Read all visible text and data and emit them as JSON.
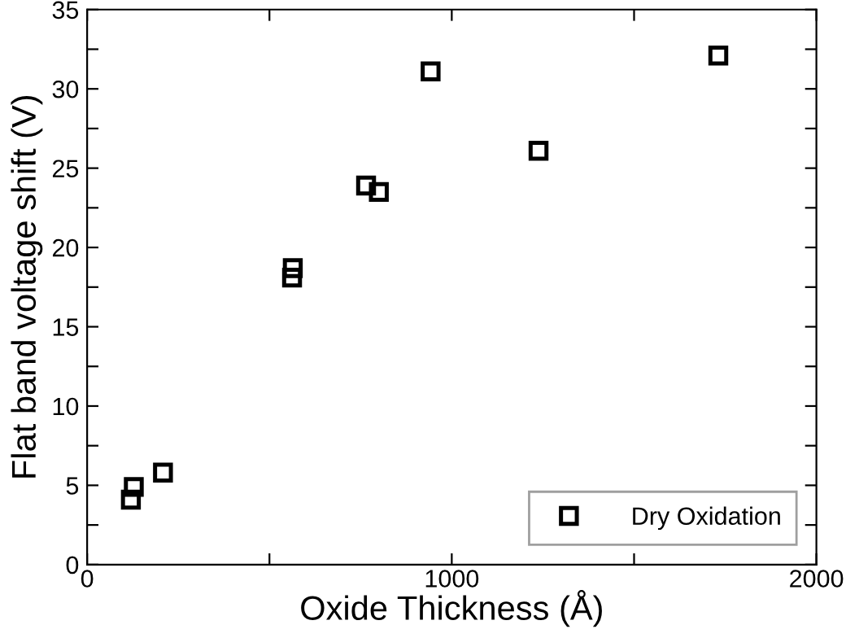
{
  "chart_data": {
    "type": "scatter",
    "xlabel": "Oxide Thickness (Å)",
    "ylabel": "Flat band voltage shift (V)",
    "x": [
      120,
      128,
      208,
      562,
      564,
      765,
      800,
      942,
      1238,
      1731
    ],
    "series": [
      {
        "name": "Dry Oxidation",
        "color": "#000000",
        "values": [
          4.1,
          4.9,
          5.8,
          18.1,
          18.7,
          23.9,
          23.5,
          31.1,
          26.1,
          32.1
        ]
      }
    ],
    "xlim": [
      0,
      2000
    ],
    "ylim": [
      0,
      35
    ],
    "xticks": [
      0,
      {
        "value": 500,
        "label": null
      },
      1000,
      {
        "value": 1500,
        "label": null
      },
      2000
    ],
    "yticks": [
      0,
      {
        "value": 2.5,
        "label": null
      },
      5,
      {
        "value": 7.5,
        "label": null
      },
      10,
      {
        "value": 12.5,
        "label": null
      },
      15,
      {
        "value": 17.5,
        "label": null
      },
      20,
      {
        "value": 22.5,
        "label": null
      },
      25,
      {
        "value": 27.5,
        "label": null
      },
      30,
      {
        "value": 32.5,
        "label": null
      },
      35
    ],
    "marker": "square",
    "legend": "bottom right",
    "grid": false
  }
}
